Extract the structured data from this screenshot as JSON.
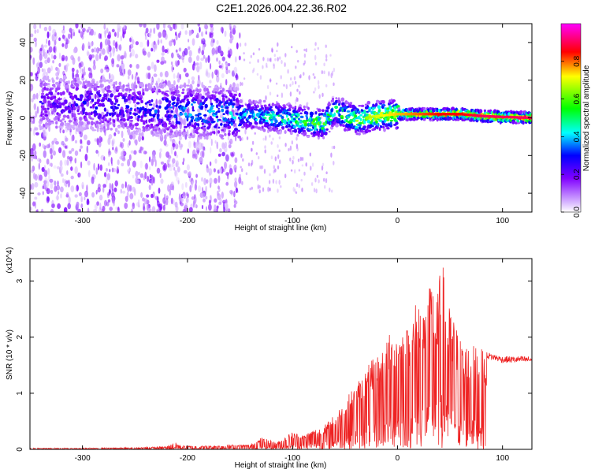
{
  "title": "C2E1.2026.004.22.36.R02",
  "chart_data": [
    {
      "type": "heatmap",
      "xlabel": "Height of straight line (km)",
      "ylabel": "Frequency (Hz)",
      "xlim": [
        -350,
        128
      ],
      "ylim": [
        -50,
        50
      ],
      "xticks": [
        -300,
        -200,
        -100,
        0,
        100
      ],
      "yticks": [
        -40,
        -20,
        0,
        20,
        40
      ],
      "colorbar": {
        "label": "Normalized spectral amplitude",
        "range": [
          0,
          1
        ],
        "ticks": [
          "0.0",
          "0.2",
          "0.4",
          "0.6",
          "0.8"
        ],
        "colormap": [
          "#ffffff",
          "#8000ff",
          "#0000ff",
          "#00ffff",
          "#00ff00",
          "#ffff00",
          "#ff0000",
          "#ff00ff"
        ]
      },
      "ridge": {
        "x": [
          -320,
          -280,
          -250,
          -220,
          -190,
          -160,
          -130,
          -110,
          -90,
          -70,
          -60,
          -50,
          -40,
          -30,
          -20,
          0,
          20,
          40,
          60,
          80,
          100,
          128
        ],
        "y": [
          8,
          7,
          5,
          4,
          3,
          2,
          1,
          0,
          -2,
          -3,
          4,
          1,
          -1,
          0,
          1,
          2,
          2,
          2,
          2,
          1,
          0.5,
          0
        ],
        "peak_amplitude": [
          0.25,
          0.3,
          0.3,
          0.35,
          0.4,
          0.4,
          0.45,
          0.5,
          0.55,
          0.6,
          0.5,
          0.6,
          0.65,
          0.65,
          0.7,
          0.75,
          0.8,
          0.85,
          0.85,
          0.9,
          0.9,
          0.9
        ]
      }
    },
    {
      "type": "line",
      "xlabel": "Height of straight line (km)",
      "ylabel": "SNR (10 * v/v)",
      "y_multiplier": "(x10^4)",
      "xlim": [
        -350,
        128
      ],
      "ylim": [
        0,
        3.4
      ],
      "xticks": [
        -300,
        -200,
        -100,
        0,
        100
      ],
      "yticks": [
        0,
        1,
        2,
        3
      ],
      "color": "#ee2222",
      "series": [
        {
          "x": [
            -350,
            -300,
            -250,
            -220,
            -212,
            -205,
            -180,
            -160,
            -140,
            -130,
            -115,
            -100,
            -90,
            -80,
            -70,
            -60,
            -50,
            -40,
            -30,
            -20,
            -10,
            0,
            10,
            20,
            28,
            33,
            38,
            42,
            48,
            55,
            60,
            70,
            80,
            90,
            100,
            110,
            120,
            128
          ],
          "y": [
            0.02,
            0.02,
            0.03,
            0.05,
            0.12,
            0.06,
            0.06,
            0.08,
            0.08,
            0.2,
            0.12,
            0.3,
            0.25,
            0.35,
            0.4,
            0.6,
            0.85,
            1.1,
            1.4,
            1.6,
            1.9,
            2.2,
            2.1,
            2.7,
            2.5,
            3.0,
            2.6,
            3.3,
            2.5,
            2.2,
            1.9,
            1.8,
            1.7,
            1.65,
            1.6,
            1.6,
            1.6,
            1.6
          ]
        }
      ]
    }
  ]
}
